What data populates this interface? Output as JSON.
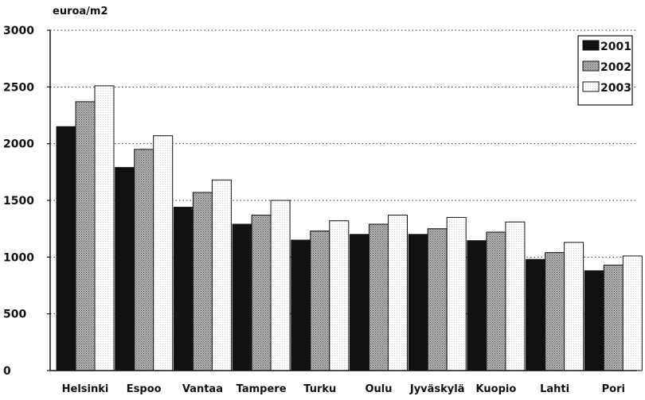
{
  "chart_data": {
    "type": "bar",
    "ylabel": "euroa/m2",
    "categories": [
      "Helsinki",
      "Espoo",
      "Vantaa",
      "Tampere",
      "Turku",
      "Oulu",
      "Jyväskylä",
      "Kuopio",
      "Lahti",
      "Pori"
    ],
    "series": [
      {
        "name": "2001",
        "color": "#111111",
        "values": [
          2150,
          1790,
          1440,
          1290,
          1150,
          1200,
          1200,
          1145,
          980,
          880
        ]
      },
      {
        "name": "2002",
        "color": "#9a9a9a",
        "values": [
          2370,
          1950,
          1570,
          1370,
          1230,
          1290,
          1250,
          1220,
          1040,
          930
        ]
      },
      {
        "name": "2003",
        "color": "#ffffff",
        "values": [
          2510,
          2070,
          1680,
          1500,
          1320,
          1370,
          1350,
          1310,
          1130,
          1010
        ]
      }
    ],
    "yticks": [
      0,
      500,
      1000,
      1500,
      2000,
      2500,
      3000
    ],
    "ylim": [
      0,
      3000
    ],
    "grid": true,
    "legend": "top-right"
  }
}
